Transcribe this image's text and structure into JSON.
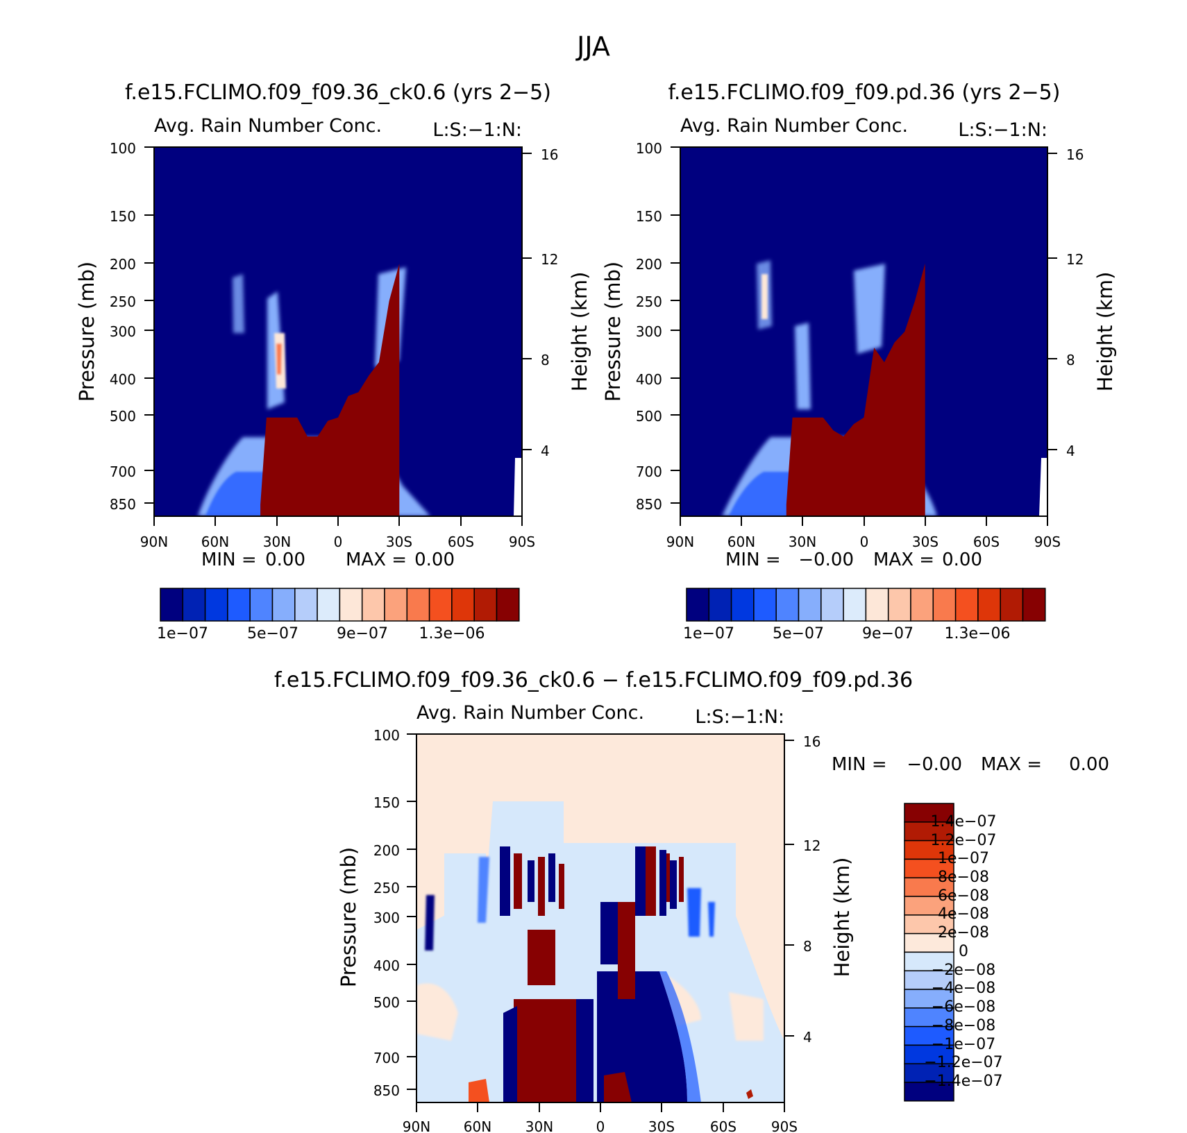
{
  "figure": {
    "title": "JJA"
  },
  "colors": {
    "seq": [
      "#00007f",
      "#0022b4",
      "#0038e0",
      "#1e5bff",
      "#4f84ff",
      "#86aefc",
      "#b5cdfa",
      "#dcebfb",
      "#fde7d8",
      "#fdc7ab",
      "#fba27c",
      "#f97a4d",
      "#f4501f",
      "#de3609",
      "#b11b04",
      "#870102"
    ],
    "div": [
      "#00007f",
      "#0022b4",
      "#0038e0",
      "#1e5bff",
      "#4f84ff",
      "#86aefc",
      "#b5cdfa",
      "#d6e8fb",
      "#fde9db",
      "#fdc7ab",
      "#fba27c",
      "#f97a4d",
      "#f4501f",
      "#de3609",
      "#b11b04",
      "#870102"
    ]
  },
  "chart_data": [
    {
      "type": "heatmap",
      "id": "ctl",
      "title": "f.e15.FCLIMO.f09_f09.36_ck0.6 (yrs 2−5)",
      "subtitle": "Avg. Rain Number Conc.",
      "corner_label": "L:S:−1:N:",
      "ylabel": "Pressure (mb)",
      "y2label": "Height (km)",
      "x_ticks": [
        "90N",
        "60N",
        "30N",
        "0",
        "30S",
        "60S",
        "90S"
      ],
      "x_range": [
        90,
        -90
      ],
      "y_ticks": [
        "100",
        "150",
        "200",
        "250",
        "300",
        "400",
        "500",
        "700",
        "850"
      ],
      "y_scale": "log",
      "y_range": [
        900,
        100
      ],
      "y2_ticks": [
        "16",
        "12",
        "8",
        "4"
      ],
      "stats": {
        "min_label": "MIN =",
        "min": "0.00",
        "max_label": "MAX =",
        "max": "0.00"
      },
      "colorbar_labels": [
        "1e−07",
        "5e−07",
        "9e−07",
        "1.3e−06"
      ],
      "regions": [
        {
          "label": "rain",
          "value": 1.5e-06,
          "lats": [
            38,
            35,
            30,
            25,
            20,
            15,
            10,
            5,
            0,
            -5,
            -10,
            -15,
            -20,
            -25,
            -30
          ],
          "top_p": [
            840,
            500,
            500,
            500,
            500,
            560,
            560,
            510,
            500,
            440,
            430,
            390,
            360,
            250,
            200
          ],
          "bottom_p": 900
        }
      ]
    },
    {
      "type": "heatmap",
      "id": "exp",
      "title": "f.e15.FCLIMO.f09_f09.pd.36 (yrs 2−5)",
      "subtitle": "Avg. Rain Number Conc.",
      "corner_label": "L:S:−1:N:",
      "ylabel": "Pressure (mb)",
      "y2label": "Height (km)",
      "x_ticks": [
        "90N",
        "60N",
        "30N",
        "0",
        "30S",
        "60S",
        "90S"
      ],
      "x_range": [
        90,
        -90
      ],
      "y_ticks": [
        "100",
        "150",
        "200",
        "250",
        "300",
        "400",
        "500",
        "700",
        "850"
      ],
      "y_scale": "log",
      "y_range": [
        900,
        100
      ],
      "y2_ticks": [
        "16",
        "12",
        "8",
        "4"
      ],
      "stats": {
        "min_label": "MIN =",
        "min": "−0.00",
        "max_label": "MAX =",
        "max": "0.00"
      },
      "colorbar_labels": [
        "1e−07",
        "5e−07",
        "9e−07",
        "1.3e−06"
      ]
    },
    {
      "type": "heatmap",
      "id": "diff",
      "title": "f.e15.FCLIMO.f09_f09.36_ck0.6 − f.e15.FCLIMO.f09_f09.pd.36",
      "subtitle": "Avg. Rain Number Conc.",
      "corner_label": "L:S:−1:N:",
      "ylabel": "Pressure (mb)",
      "y2label": "Height (km)",
      "x_ticks": [
        "90N",
        "60N",
        "30N",
        "0",
        "30S",
        "60S",
        "90S"
      ],
      "x_range": [
        90,
        -90
      ],
      "y_ticks": [
        "100",
        "150",
        "200",
        "250",
        "300",
        "400",
        "500",
        "700",
        "850"
      ],
      "y_scale": "log",
      "y_range": [
        900,
        100
      ],
      "y2_ticks": [
        "16",
        "12",
        "8",
        "4"
      ],
      "stats": {
        "min_label": "MIN =",
        "min": "−0.00",
        "max_label": "MAX =",
        "max": "0.00"
      },
      "colorbar_labels": [
        "1.4e−07",
        "1.2e−07",
        "1e−07",
        "8e−08",
        "6e−08",
        "4e−08",
        "2e−08",
        "0",
        "−2e−08",
        "−4e−08",
        "−6e−08",
        "−8e−08",
        "−1e−07",
        "−1.2e−07",
        "−1.4e−07"
      ]
    }
  ]
}
